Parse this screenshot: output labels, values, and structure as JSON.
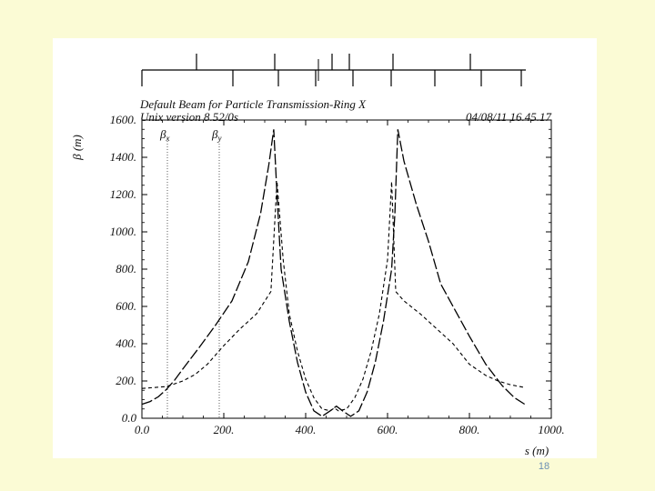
{
  "slide": {
    "number": "18"
  },
  "chart_data": {
    "type": "line",
    "title": "Default Beam for Particle Transmission-Ring X",
    "subtitle": "Unix version 8.52/0s",
    "timestamp": "04/08/11  16.45.17",
    "xlabel": "s (m)",
    "ylabel": "β (m)",
    "xlim": [
      0,
      1000
    ],
    "ylim": [
      0,
      1600
    ],
    "x_ticks": [
      0,
      200,
      400,
      600,
      800,
      1000
    ],
    "x_tick_labels": [
      "0.0",
      "200.",
      "400.",
      "600.",
      "800.",
      "1000."
    ],
    "y_ticks": [
      0,
      200,
      400,
      600,
      800,
      1000,
      1200,
      1400,
      1600
    ],
    "y_tick_labels": [
      "0.0",
      "200.",
      "400.",
      "600.",
      "800.",
      "1000.",
      "1200.",
      "1400.",
      "1600."
    ],
    "grid": false,
    "legend_position": "top-left",
    "series": [
      {
        "name": "βx",
        "style": "long-dash",
        "points": [
          [
            0,
            75
          ],
          [
            20,
            90
          ],
          [
            40,
            115
          ],
          [
            60,
            155
          ],
          [
            80,
            205
          ],
          [
            100,
            265
          ],
          [
            140,
            380
          ],
          [
            180,
            500
          ],
          [
            220,
            630
          ],
          [
            260,
            840
          ],
          [
            290,
            1100
          ],
          [
            310,
            1360
          ],
          [
            322,
            1550
          ],
          [
            330,
            1200
          ],
          [
            340,
            800
          ],
          [
            360,
            520
          ],
          [
            380,
            300
          ],
          [
            400,
            140
          ],
          [
            420,
            40
          ],
          [
            440,
            10
          ],
          [
            460,
            40
          ],
          [
            475,
            65
          ],
          [
            490,
            40
          ],
          [
            510,
            10
          ],
          [
            530,
            40
          ],
          [
            550,
            140
          ],
          [
            570,
            300
          ],
          [
            590,
            520
          ],
          [
            610,
            800
          ],
          [
            618,
            1100
          ],
          [
            625,
            1550
          ],
          [
            640,
            1380
          ],
          [
            670,
            1150
          ],
          [
            700,
            950
          ],
          [
            730,
            720
          ],
          [
            760,
            600
          ],
          [
            800,
            440
          ],
          [
            840,
            290
          ],
          [
            880,
            175
          ],
          [
            910,
            110
          ],
          [
            935,
            75
          ]
        ]
      },
      {
        "name": "βy",
        "style": "short-dash",
        "points": [
          [
            0,
            160
          ],
          [
            30,
            165
          ],
          [
            60,
            170
          ],
          [
            80,
            185
          ],
          [
            100,
            200
          ],
          [
            130,
            235
          ],
          [
            160,
            290
          ],
          [
            200,
            390
          ],
          [
            240,
            480
          ],
          [
            280,
            560
          ],
          [
            315,
            680
          ],
          [
            330,
            1270
          ],
          [
            345,
            850
          ],
          [
            360,
            560
          ],
          [
            380,
            360
          ],
          [
            400,
            210
          ],
          [
            420,
            110
          ],
          [
            440,
            50
          ],
          [
            460,
            40
          ],
          [
            470,
            55
          ],
          [
            480,
            40
          ],
          [
            500,
            50
          ],
          [
            520,
            110
          ],
          [
            540,
            210
          ],
          [
            560,
            360
          ],
          [
            580,
            560
          ],
          [
            600,
            850
          ],
          [
            610,
            1270
          ],
          [
            620,
            680
          ],
          [
            640,
            630
          ],
          [
            680,
            560
          ],
          [
            720,
            480
          ],
          [
            760,
            400
          ],
          [
            800,
            290
          ],
          [
            840,
            230
          ],
          [
            870,
            200
          ],
          [
            900,
            180
          ],
          [
            935,
            165
          ]
        ]
      }
    ]
  }
}
